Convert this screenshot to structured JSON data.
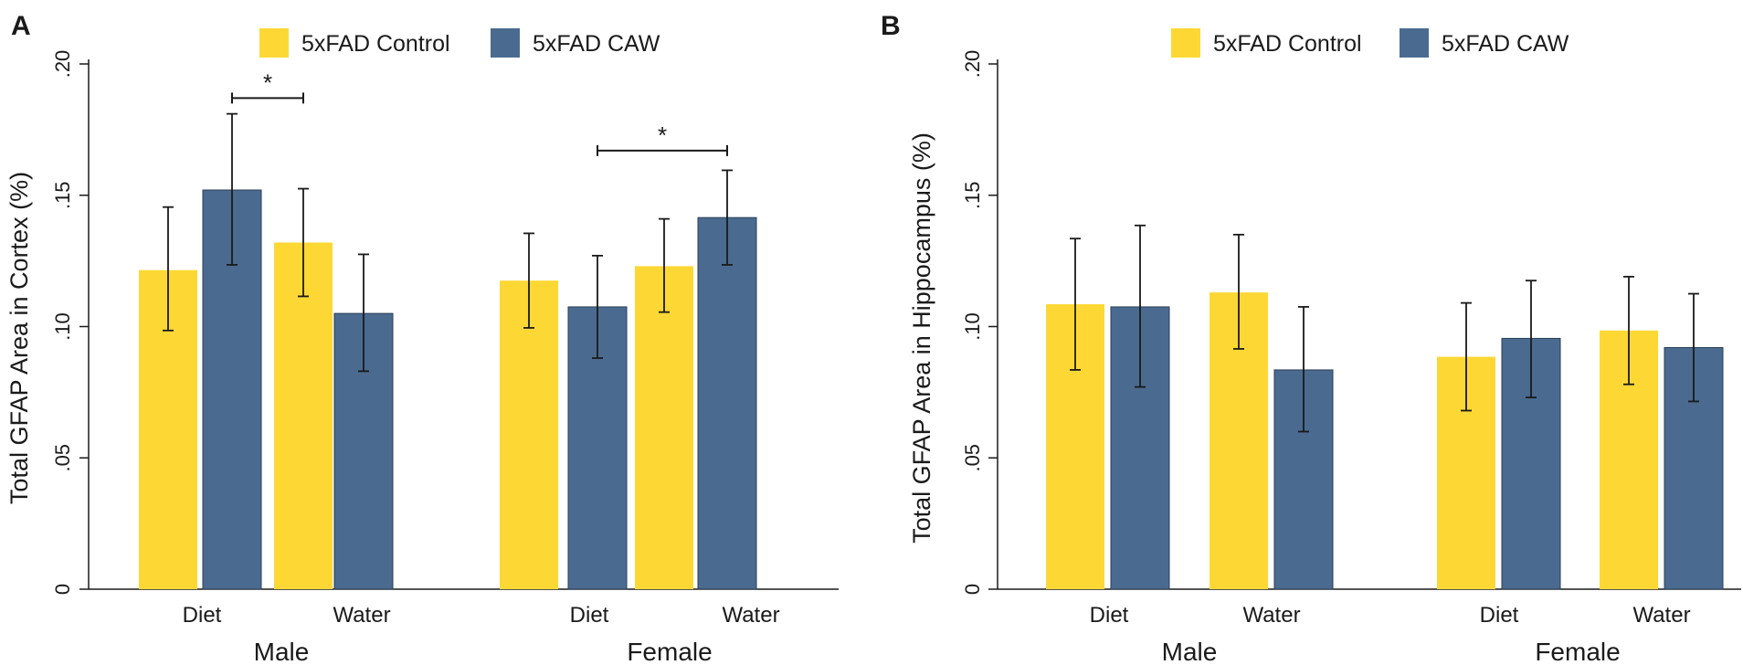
{
  "colors": {
    "control": "#FDD835",
    "caw": "#4A6B8F",
    "axis": "#1a1a1a",
    "errorbar": "#1a1a1a"
  },
  "legend": {
    "control_label": "5xFAD Control",
    "caw_label": "5xFAD CAW"
  },
  "chart_data": [
    {
      "panel": "A",
      "type": "bar",
      "ylabel": "Total GFAP Area in Cortex (%)",
      "ylim": [
        0,
        0.2
      ],
      "yticks": [
        0,
        0.05,
        0.1,
        0.15,
        0.2
      ],
      "ytick_labels": [
        "0",
        ".05",
        ".10",
        ".15",
        ".20"
      ],
      "groups": [
        {
          "name": "Male",
          "categories": [
            "Diet",
            "Water"
          ]
        },
        {
          "name": "Female",
          "categories": [
            "Diet",
            "Water"
          ]
        }
      ],
      "series": [
        {
          "name": "5xFAD Control",
          "values": [
            0.1215,
            0.132,
            0.1175,
            0.123
          ],
          "lower": [
            0.0985,
            0.1115,
            0.0995,
            0.1055
          ],
          "upper": [
            0.1455,
            0.1525,
            0.1355,
            0.141
          ]
        },
        {
          "name": "5xFAD CAW",
          "values": [
            0.152,
            0.105,
            0.1075,
            0.1415
          ],
          "lower": [
            0.1235,
            0.083,
            0.088,
            0.1235
          ],
          "upper": [
            0.181,
            0.1275,
            0.127,
            0.1595
          ]
        }
      ],
      "significance": [
        {
          "label": "*",
          "from": {
            "series": 1,
            "index": 0
          },
          "to": {
            "series": 0,
            "index": 1
          },
          "y": 0.187
        },
        {
          "label": "*",
          "from": {
            "series": 1,
            "index": 2
          },
          "to": {
            "series": 1,
            "index": 3
          },
          "y": 0.167
        }
      ]
    },
    {
      "panel": "B",
      "type": "bar",
      "ylabel": "Total GFAP Area in Hippocampus (%)",
      "ylim": [
        0,
        0.2
      ],
      "yticks": [
        0,
        0.05,
        0.1,
        0.15,
        0.2
      ],
      "ytick_labels": [
        "0",
        ".05",
        ".10",
        ".15",
        ".20"
      ],
      "groups": [
        {
          "name": "Male",
          "categories": [
            "Diet",
            "Water"
          ]
        },
        {
          "name": "Female",
          "categories": [
            "Diet",
            "Water"
          ]
        }
      ],
      "series": [
        {
          "name": "5xFAD Control",
          "values": [
            0.1085,
            0.113,
            0.0885,
            0.0985
          ],
          "lower": [
            0.0835,
            0.0915,
            0.068,
            0.078
          ],
          "upper": [
            0.1335,
            0.135,
            0.109,
            0.119
          ]
        },
        {
          "name": "5xFAD CAW",
          "values": [
            0.1075,
            0.0835,
            0.0955,
            0.092
          ],
          "lower": [
            0.077,
            0.06,
            0.073,
            0.0715
          ],
          "upper": [
            0.1385,
            0.1075,
            0.1175,
            0.1125
          ]
        }
      ],
      "significance": []
    }
  ]
}
